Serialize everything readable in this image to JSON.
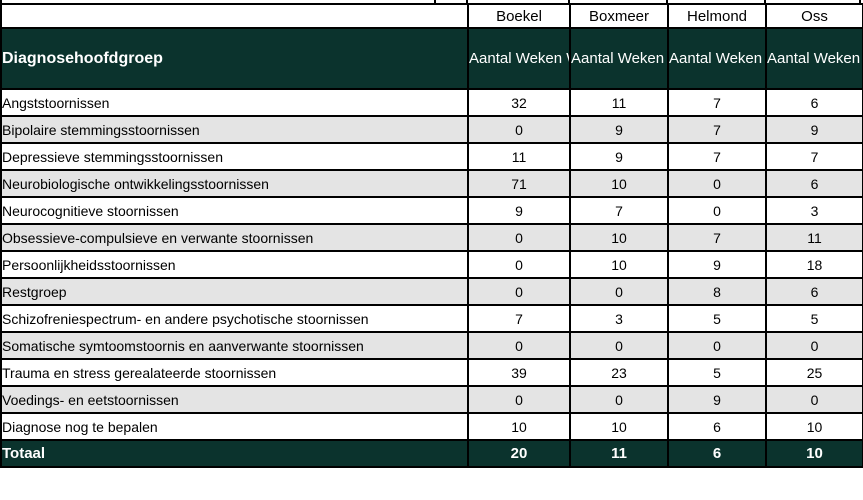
{
  "table": {
    "row_header_label": "Diagnosehoofdgroep",
    "locations": [
      "Boekel",
      "Boxmeer",
      "Helmond",
      "Oss"
    ],
    "measure_label": "Aantal\nWeken\nWachttijd",
    "rows": [
      {
        "label": "Angststoornissen",
        "values": [
          32,
          11,
          7,
          6
        ]
      },
      {
        "label": "Bipolaire stemmingsstoornissen",
        "values": [
          0,
          9,
          7,
          9
        ]
      },
      {
        "label": "Depressieve stemmingsstoornissen",
        "values": [
          11,
          9,
          7,
          7
        ]
      },
      {
        "label": "Neurobiologische ontwikkelingsstoornissen",
        "values": [
          71,
          10,
          0,
          6
        ]
      },
      {
        "label": "Neurocognitieve stoornissen",
        "values": [
          9,
          7,
          0,
          3
        ]
      },
      {
        "label": "Obsessieve-compulsieve en verwante stoornissen",
        "values": [
          0,
          10,
          7,
          11
        ]
      },
      {
        "label": "Persoonlijkheidsstoornissen",
        "values": [
          0,
          10,
          9,
          18
        ]
      },
      {
        "label": "Restgroep",
        "values": [
          0,
          0,
          8,
          6
        ]
      },
      {
        "label": "Schizofreniespectrum- en andere psychotische stoornissen",
        "values": [
          7,
          3,
          5,
          5
        ]
      },
      {
        "label": "Somatische symtoomstoornis en aanverwante stoornissen",
        "values": [
          0,
          0,
          0,
          0
        ]
      },
      {
        "label": "Trauma en stress gerealateerde stoornissen",
        "values": [
          39,
          23,
          5,
          25
        ]
      },
      {
        "label": "Voedings- en eetstoornissen",
        "values": [
          0,
          0,
          9,
          0
        ]
      },
      {
        "label": "Diagnose nog te bepalen",
        "values": [
          10,
          10,
          6,
          10
        ]
      }
    ],
    "total": {
      "label": "Totaal",
      "values": [
        20,
        11,
        6,
        10
      ]
    }
  },
  "colors": {
    "header_bg": "#0b332d",
    "header_text": "#ffffff",
    "alt_row_bg": "#e4e4e4",
    "row_bg": "#ffffff",
    "border": "#000000"
  }
}
